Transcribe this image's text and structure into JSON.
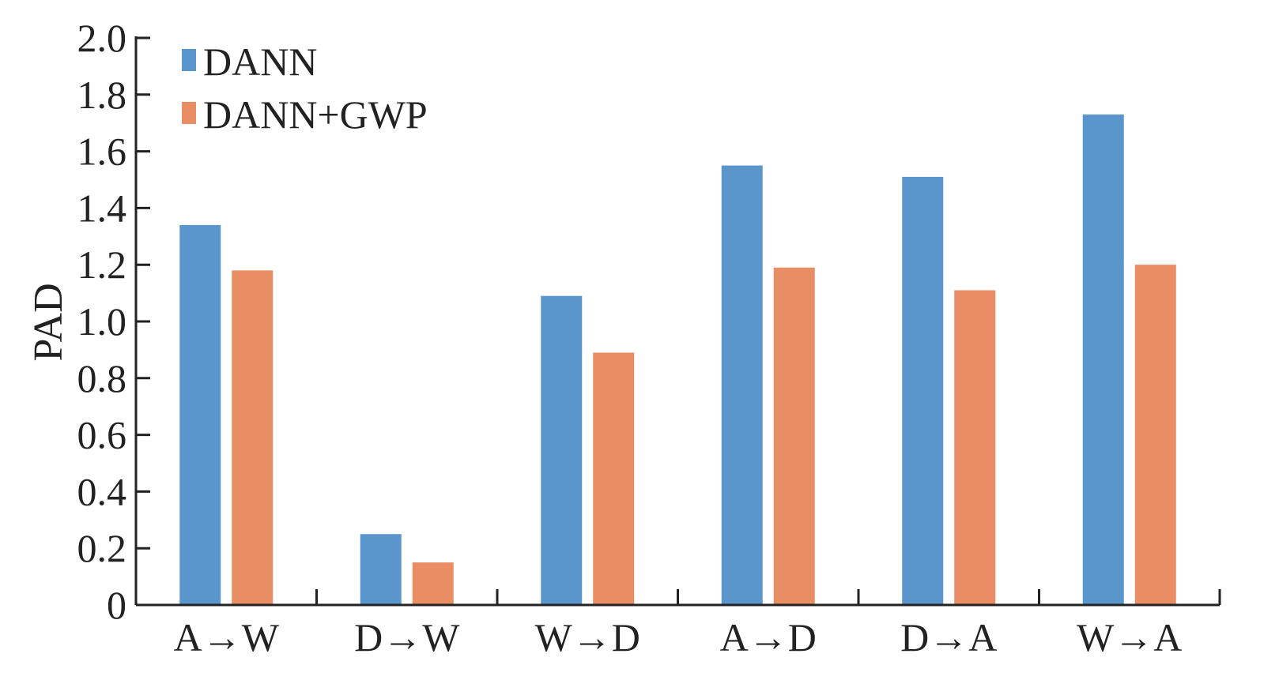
{
  "chart_data": {
    "type": "bar",
    "categories": [
      "A→W",
      "D→W",
      "W→D",
      "A→D",
      "D→A",
      "W→A"
    ],
    "series": [
      {
        "name": "DANN",
        "values": [
          1.34,
          0.25,
          1.09,
          1.55,
          1.51,
          1.73
        ],
        "color": "#5a95cc"
      },
      {
        "name": "DANN+GWP",
        "values": [
          1.18,
          0.15,
          0.89,
          1.19,
          1.11,
          1.2
        ],
        "color": "#e98e64"
      }
    ],
    "title": "",
    "xlabel": "",
    "ylabel": "PAD",
    "ylim": [
      0,
      2.0
    ],
    "yticks": [
      "0",
      "0.2",
      "0.4",
      "0.6",
      "0.8",
      "1.0",
      "1.2",
      "1.4",
      "1.6",
      "1.8",
      "2.0"
    ],
    "grid": false,
    "legend_position": "top-left"
  }
}
